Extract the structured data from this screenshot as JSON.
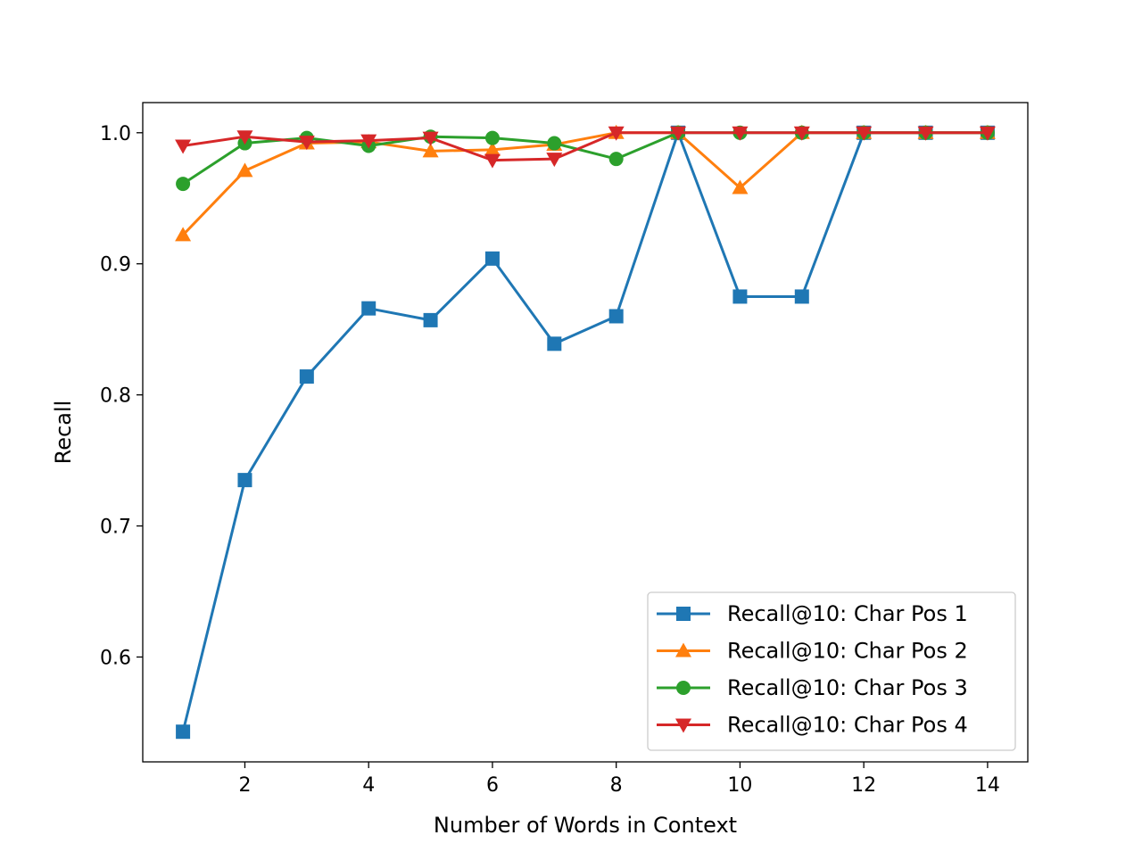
{
  "chart_data": {
    "type": "line",
    "title": "",
    "xlabel": "Number of Words in Context",
    "ylabel": "Recall",
    "x": [
      1,
      2,
      3,
      4,
      5,
      6,
      7,
      8,
      9,
      10,
      11,
      12,
      13,
      14
    ],
    "xlim": [
      0.35,
      14.65
    ],
    "ylim": [
      0.52,
      1.023
    ],
    "xticks": [
      2,
      4,
      6,
      8,
      10,
      12,
      14
    ],
    "xtick_labels": [
      "2",
      "4",
      "6",
      "8",
      "10",
      "12",
      "14"
    ],
    "yticks": [
      0.6,
      0.7,
      0.8,
      0.9,
      1.0
    ],
    "ytick_labels": [
      "0.6",
      "0.7",
      "0.8",
      "0.9",
      "1.0"
    ],
    "grid": false,
    "legend_position": "bottom-right",
    "series": [
      {
        "name": "Recall@10: Char Pos 1",
        "color": "#1f77b4",
        "marker": "square",
        "values": [
          0.543,
          0.735,
          0.814,
          0.866,
          0.857,
          0.904,
          0.839,
          0.86,
          1.0,
          0.875,
          0.875,
          1.0,
          1.0,
          1.0
        ]
      },
      {
        "name": "Recall@10: Char Pos 2",
        "color": "#ff7f0e",
        "marker": "triangle-up",
        "values": [
          0.922,
          0.971,
          0.992,
          0.993,
          0.986,
          0.987,
          0.991,
          1.0,
          1.0,
          0.958,
          1.0,
          1.0,
          1.0,
          1.0
        ]
      },
      {
        "name": "Recall@10: Char Pos 3",
        "color": "#2ca02c",
        "marker": "circle",
        "values": [
          0.961,
          0.992,
          0.996,
          0.99,
          0.997,
          0.996,
          0.992,
          0.98,
          1.0,
          1.0,
          1.0,
          1.0,
          1.0,
          1.0
        ]
      },
      {
        "name": "Recall@10: Char Pos 4",
        "color": "#d62728",
        "marker": "triangle-down",
        "values": [
          0.99,
          0.997,
          0.993,
          0.994,
          0.996,
          0.979,
          0.98,
          1.0,
          1.0,
          1.0,
          1.0,
          1.0,
          1.0,
          1.0
        ]
      }
    ]
  }
}
